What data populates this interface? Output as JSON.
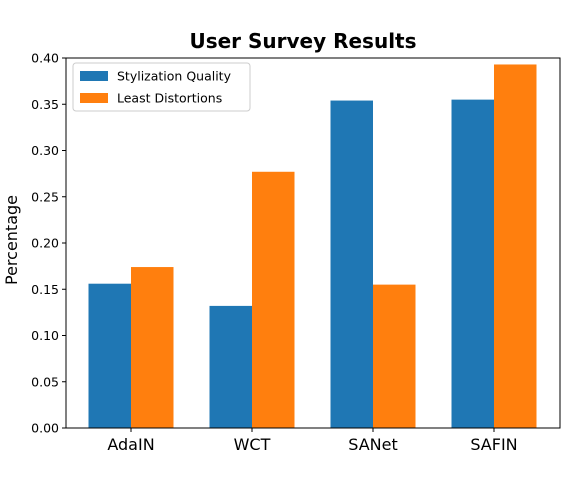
{
  "chart_data": {
    "type": "bar",
    "title": "User Survey Results",
    "xlabel": "",
    "ylabel": "Percentage",
    "categories": [
      "AdaIN",
      "WCT",
      "SANet",
      "SAFIN"
    ],
    "series": [
      {
        "name": "Stylization Quality",
        "color": "#1f77b4",
        "values": [
          0.156,
          0.132,
          0.354,
          0.355
        ]
      },
      {
        "name": "Least Distortions",
        "color": "#ff7f0e",
        "values": [
          0.174,
          0.277,
          0.155,
          0.393
        ]
      }
    ],
    "ylim": [
      0.0,
      0.4
    ],
    "yticks": [
      "0.00",
      "0.05",
      "0.10",
      "0.15",
      "0.20",
      "0.25",
      "0.30",
      "0.35",
      "0.40"
    ],
    "grid": false,
    "legend_position": "upper-left"
  }
}
